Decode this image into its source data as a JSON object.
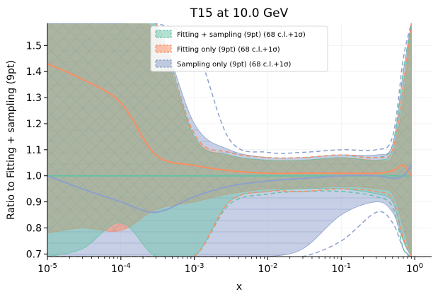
{
  "chart_data": {
    "type": "area",
    "title": "T15 at 10.0 GeV",
    "xlabel": "x",
    "ylabel": "Ratio to Fitting + sampling (9pt)",
    "xscale": "log",
    "xlim": [
      1e-05,
      1.7
    ],
    "ylim": [
      0.69,
      1.585
    ],
    "grid": true,
    "legend_position": "top-center",
    "x_ticks": [
      1e-05,
      0.0001,
      0.001,
      0.01,
      0.1,
      1
    ],
    "x_tick_labels": [
      "10^-5",
      "10^-4",
      "10^-3",
      "10^-2",
      "10^-1",
      "10^0"
    ],
    "y_ticks": [
      0.7,
      0.8,
      0.9,
      1.0,
      1.1,
      1.2,
      1.3,
      1.4,
      1.5
    ],
    "y_tick_labels": [
      "0.7",
      "0.8",
      "0.9",
      "1.0",
      "1.1",
      "1.2",
      "1.3",
      "1.4",
      "1.5"
    ],
    "series": [
      {
        "name": "Fitting + sampling (9pt) (68 c.l.+1σ)",
        "color": "#66c2a5",
        "x": [
          1e-05,
          3e-05,
          0.0001,
          0.0003,
          0.001,
          0.003,
          0.01,
          0.03,
          0.1,
          0.3,
          0.5,
          0.7,
          0.9
        ],
        "central": [
          1.0,
          1.0,
          1.0,
          1.0,
          1.0,
          1.0,
          1.0,
          1.0,
          1.0,
          1.0,
          1.0,
          1.0,
          1.0
        ],
        "band_upper": [
          1.585,
          1.585,
          1.585,
          1.585,
          1.15,
          1.08,
          1.06,
          1.06,
          1.07,
          1.06,
          1.1,
          1.35,
          1.585
        ],
        "band_lower": [
          0.69,
          0.72,
          0.82,
          0.69,
          0.69,
          0.9,
          0.94,
          0.95,
          0.95,
          0.93,
          0.9,
          0.75,
          0.69
        ],
        "sigma_upper": [
          1.585,
          1.585,
          1.585,
          1.585,
          1.16,
          1.09,
          1.07,
          1.07,
          1.08,
          1.07,
          1.12,
          1.4,
          1.585
        ],
        "sigma_lower": [
          0.69,
          0.69,
          0.69,
          0.69,
          0.69,
          0.89,
          0.93,
          0.94,
          0.94,
          0.92,
          0.88,
          0.72,
          0.69
        ]
      },
      {
        "name": "Fitting only (9pt) (68 c.l.+1σ)",
        "color": "#fc8d62",
        "x": [
          1e-05,
          3e-05,
          0.0001,
          0.0003,
          0.001,
          0.003,
          0.01,
          0.03,
          0.1,
          0.3,
          0.5,
          0.7,
          0.9
        ],
        "central": [
          1.43,
          1.37,
          1.28,
          1.08,
          1.04,
          1.02,
          1.01,
          1.01,
          1.01,
          1.01,
          1.02,
          1.04,
          1.0
        ],
        "band_upper": [
          1.585,
          1.585,
          1.585,
          1.55,
          1.15,
          1.08,
          1.06,
          1.06,
          1.07,
          1.06,
          1.08,
          1.3,
          1.585
        ],
        "band_lower": [
          0.78,
          0.8,
          0.79,
          0.87,
          0.9,
          0.93,
          0.95,
          0.95,
          0.96,
          0.95,
          0.93,
          0.8,
          0.69
        ],
        "sigma_upper": [
          1.585,
          1.585,
          1.585,
          1.585,
          1.16,
          1.09,
          1.07,
          1.07,
          1.08,
          1.07,
          1.1,
          1.35,
          1.585
        ],
        "sigma_lower": [
          0.69,
          0.69,
          0.69,
          0.69,
          0.69,
          0.9,
          0.94,
          0.94,
          0.95,
          0.94,
          0.91,
          0.76,
          0.69
        ]
      },
      {
        "name": "Sampling only (9pt) (68 c.l.+1σ)",
        "color": "#8da0cb",
        "x": [
          1e-05,
          3e-05,
          0.0001,
          0.0003,
          0.001,
          0.003,
          0.01,
          0.03,
          0.1,
          0.3,
          0.5,
          0.7,
          0.9
        ],
        "central": [
          1.0,
          0.95,
          0.9,
          0.86,
          0.92,
          0.96,
          0.98,
          0.99,
          1.0,
          1.0,
          0.99,
          1.0,
          1.04
        ],
        "band_upper": [
          1.585,
          1.585,
          1.585,
          1.585,
          1.2,
          1.1,
          1.07,
          1.07,
          1.08,
          1.08,
          1.12,
          1.4,
          1.585
        ],
        "band_lower": [
          0.69,
          0.69,
          0.69,
          0.69,
          0.69,
          0.69,
          0.69,
          0.72,
          0.85,
          0.9,
          0.86,
          0.75,
          0.69
        ],
        "sigma_upper": [
          1.585,
          1.585,
          1.585,
          1.585,
          1.5,
          1.14,
          1.09,
          1.09,
          1.1,
          1.1,
          1.15,
          1.45,
          1.585
        ],
        "sigma_lower": [
          0.69,
          0.69,
          0.69,
          0.69,
          0.69,
          0.69,
          0.69,
          0.69,
          0.75,
          0.86,
          0.82,
          0.72,
          0.69
        ]
      }
    ]
  }
}
